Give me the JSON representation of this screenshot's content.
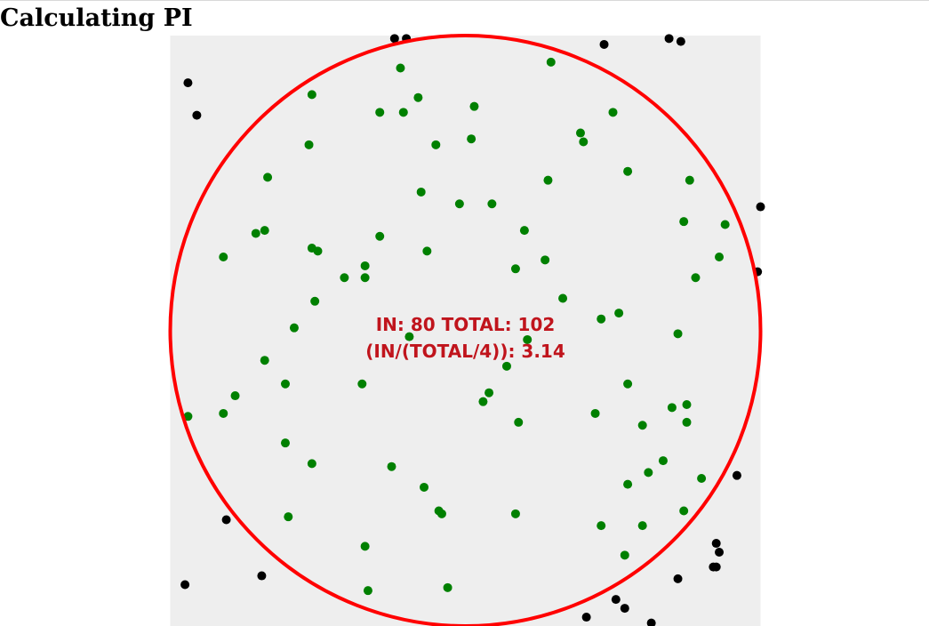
{
  "title": "Calculating PI",
  "stats": {
    "line1": "IN: 80 TOTAL: 102",
    "line2": "(IN/(TOTAL/4)): 3.14"
  },
  "simulation": {
    "square_min": -1,
    "square_max": 1,
    "radius": 1,
    "in_count": 80,
    "total_count": 102,
    "estimate": 3.14
  },
  "colors": {
    "square_fill": "#eeeeee",
    "circle_stroke": "#ff0000",
    "inside_point": "#008000",
    "outside_point": "#000000",
    "stats_text": "#c0141c"
  },
  "points": [
    {
      "x": -0.24,
      "y": 0.99,
      "inside": false
    },
    {
      "x": -0.2,
      "y": 0.99,
      "inside": false
    },
    {
      "x": 0.47,
      "y": 0.97,
      "inside": false
    },
    {
      "x": 0.69,
      "y": 0.99,
      "inside": false
    },
    {
      "x": 0.73,
      "y": 0.98,
      "inside": false
    },
    {
      "x": -0.94,
      "y": 0.84,
      "inside": false
    },
    {
      "x": -0.91,
      "y": 0.73,
      "inside": false
    },
    {
      "x": 1.0,
      "y": 0.42,
      "inside": false
    },
    {
      "x": 0.99,
      "y": 0.2,
      "inside": false
    },
    {
      "x": 0.92,
      "y": -0.49,
      "inside": false
    },
    {
      "x": -0.81,
      "y": -0.64,
      "inside": false
    },
    {
      "x": -0.69,
      "y": -0.83,
      "inside": false
    },
    {
      "x": -0.95,
      "y": -0.86,
      "inside": false
    },
    {
      "x": 0.85,
      "y": -0.72,
      "inside": false
    },
    {
      "x": 0.86,
      "y": -0.75,
      "inside": false
    },
    {
      "x": 0.84,
      "y": -0.8,
      "inside": false
    },
    {
      "x": 0.85,
      "y": -0.8,
      "inside": false
    },
    {
      "x": 0.72,
      "y": -0.84,
      "inside": false
    },
    {
      "x": 0.51,
      "y": -0.91,
      "inside": false
    },
    {
      "x": 0.54,
      "y": -0.94,
      "inside": false
    },
    {
      "x": 0.41,
      "y": -0.97,
      "inside": false
    },
    {
      "x": 0.63,
      "y": -0.99,
      "inside": false
    },
    {
      "x": -0.22,
      "y": 0.89,
      "inside": true
    },
    {
      "x": 0.29,
      "y": 0.91,
      "inside": true
    },
    {
      "x": -0.52,
      "y": 0.8,
      "inside": true
    },
    {
      "x": -0.16,
      "y": 0.79,
      "inside": true
    },
    {
      "x": -0.29,
      "y": 0.74,
      "inside": true
    },
    {
      "x": -0.21,
      "y": 0.74,
      "inside": true
    },
    {
      "x": 0.03,
      "y": 0.76,
      "inside": true
    },
    {
      "x": 0.5,
      "y": 0.74,
      "inside": true
    },
    {
      "x": -0.53,
      "y": 0.63,
      "inside": true
    },
    {
      "x": -0.1,
      "y": 0.63,
      "inside": true
    },
    {
      "x": 0.02,
      "y": 0.65,
      "inside": true
    },
    {
      "x": 0.39,
      "y": 0.67,
      "inside": true
    },
    {
      "x": 0.4,
      "y": 0.64,
      "inside": true
    },
    {
      "x": -0.67,
      "y": 0.52,
      "inside": true
    },
    {
      "x": 0.28,
      "y": 0.51,
      "inside": true
    },
    {
      "x": 0.55,
      "y": 0.54,
      "inside": true
    },
    {
      "x": 0.76,
      "y": 0.51,
      "inside": true
    },
    {
      "x": -0.15,
      "y": 0.47,
      "inside": true
    },
    {
      "x": -0.02,
      "y": 0.43,
      "inside": true
    },
    {
      "x": 0.09,
      "y": 0.43,
      "inside": true
    },
    {
      "x": -0.71,
      "y": 0.33,
      "inside": true
    },
    {
      "x": -0.68,
      "y": 0.34,
      "inside": true
    },
    {
      "x": 0.2,
      "y": 0.34,
      "inside": true
    },
    {
      "x": -0.29,
      "y": 0.32,
      "inside": true
    },
    {
      "x": 0.74,
      "y": 0.37,
      "inside": true
    },
    {
      "x": 0.88,
      "y": 0.36,
      "inside": true
    },
    {
      "x": -0.82,
      "y": 0.25,
      "inside": true
    },
    {
      "x": -0.52,
      "y": 0.28,
      "inside": true
    },
    {
      "x": -0.5,
      "y": 0.27,
      "inside": true
    },
    {
      "x": -0.13,
      "y": 0.27,
      "inside": true
    },
    {
      "x": 0.27,
      "y": 0.24,
      "inside": true
    },
    {
      "x": 0.86,
      "y": 0.25,
      "inside": true
    },
    {
      "x": -0.34,
      "y": 0.22,
      "inside": true
    },
    {
      "x": -0.41,
      "y": 0.18,
      "inside": true
    },
    {
      "x": -0.34,
      "y": 0.18,
      "inside": true
    },
    {
      "x": 0.17,
      "y": 0.21,
      "inside": true
    },
    {
      "x": 0.78,
      "y": 0.18,
      "inside": true
    },
    {
      "x": -0.51,
      "y": 0.1,
      "inside": true
    },
    {
      "x": 0.33,
      "y": 0.11,
      "inside": true
    },
    {
      "x": -0.58,
      "y": 0.01,
      "inside": true
    },
    {
      "x": 0.46,
      "y": 0.04,
      "inside": true
    },
    {
      "x": 0.52,
      "y": 0.06,
      "inside": true
    },
    {
      "x": 0.72,
      "y": -0.01,
      "inside": true
    },
    {
      "x": -0.19,
      "y": -0.02,
      "inside": true
    },
    {
      "x": 0.21,
      "y": -0.03,
      "inside": true
    },
    {
      "x": -0.68,
      "y": -0.1,
      "inside": true
    },
    {
      "x": 0.14,
      "y": -0.12,
      "inside": true
    },
    {
      "x": -0.61,
      "y": -0.18,
      "inside": true
    },
    {
      "x": -0.35,
      "y": -0.18,
      "inside": true
    },
    {
      "x": 0.55,
      "y": -0.18,
      "inside": true
    },
    {
      "x": -0.78,
      "y": -0.22,
      "inside": true
    },
    {
      "x": 0.08,
      "y": -0.21,
      "inside": true
    },
    {
      "x": 0.06,
      "y": -0.24,
      "inside": true
    },
    {
      "x": 0.7,
      "y": -0.26,
      "inside": true
    },
    {
      "x": 0.75,
      "y": -0.25,
      "inside": true
    },
    {
      "x": -0.94,
      "y": -0.29,
      "inside": true
    },
    {
      "x": -0.82,
      "y": -0.28,
      "inside": true
    },
    {
      "x": 0.44,
      "y": -0.28,
      "inside": true
    },
    {
      "x": 0.75,
      "y": -0.31,
      "inside": true
    },
    {
      "x": 0.18,
      "y": -0.31,
      "inside": true
    },
    {
      "x": 0.6,
      "y": -0.32,
      "inside": true
    },
    {
      "x": -0.61,
      "y": -0.38,
      "inside": true
    },
    {
      "x": -0.52,
      "y": -0.45,
      "inside": true
    },
    {
      "x": 0.67,
      "y": -0.44,
      "inside": true
    },
    {
      "x": -0.25,
      "y": -0.46,
      "inside": true
    },
    {
      "x": 0.62,
      "y": -0.48,
      "inside": true
    },
    {
      "x": -0.14,
      "y": -0.53,
      "inside": true
    },
    {
      "x": 0.55,
      "y": -0.52,
      "inside": true
    },
    {
      "x": 0.8,
      "y": -0.5,
      "inside": true
    },
    {
      "x": -0.09,
      "y": -0.61,
      "inside": true
    },
    {
      "x": -0.08,
      "y": -0.62,
      "inside": true
    },
    {
      "x": 0.17,
      "y": -0.62,
      "inside": true
    },
    {
      "x": 0.74,
      "y": -0.61,
      "inside": true
    },
    {
      "x": -0.6,
      "y": -0.63,
      "inside": true
    },
    {
      "x": 0.46,
      "y": -0.66,
      "inside": true
    },
    {
      "x": 0.6,
      "y": -0.66,
      "inside": true
    },
    {
      "x": -0.34,
      "y": -0.73,
      "inside": true
    },
    {
      "x": 0.54,
      "y": -0.76,
      "inside": true
    },
    {
      "x": -0.33,
      "y": -0.88,
      "inside": true
    },
    {
      "x": -0.06,
      "y": -0.87,
      "inside": true
    }
  ]
}
